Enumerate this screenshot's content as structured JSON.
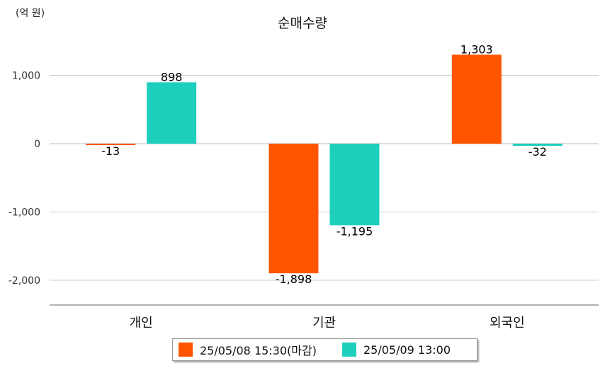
{
  "unit_label": "(억 원)",
  "chart_data": {
    "type": "bar",
    "title": "순매수량",
    "categories": [
      "개인",
      "기관",
      "외국인"
    ],
    "series": [
      {
        "name": "25/05/08 15:30(마감)",
        "color": "#ff5500",
        "values": [
          -13,
          -1898,
          1303
        ],
        "labels": [
          "-13",
          "-1,898",
          "1,303"
        ]
      },
      {
        "name": "25/05/09 13:00",
        "color": "#1ecfbd",
        "values": [
          898,
          -1195,
          -32
        ],
        "labels": [
          "898",
          "-1,195",
          "-32"
        ]
      }
    ],
    "yticks": [
      1000,
      0,
      -1000,
      -2000
    ],
    "ytick_labels": [
      "1,000",
      "0",
      "-1,000",
      "-2,000"
    ],
    "ylim": [
      -2400,
      1600
    ],
    "grid": true,
    "legend_position": "bottom"
  }
}
